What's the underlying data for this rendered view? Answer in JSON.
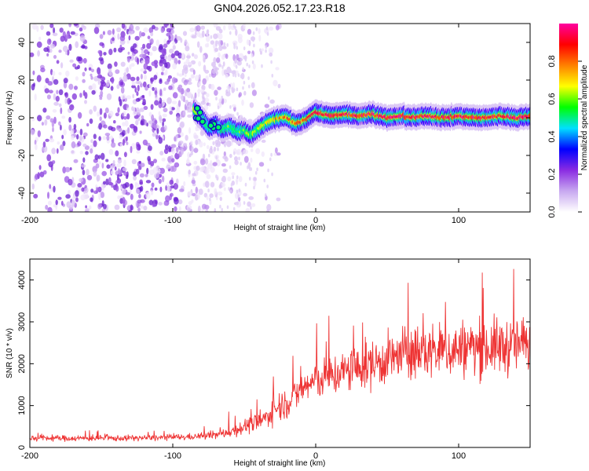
{
  "title": "GN04.2026.052.17.23.R18",
  "chart_data": [
    {
      "type": "heatmap",
      "xlabel": "Height of straight line (km)",
      "ylabel": "Frequency (Hz)",
      "xlim": [
        -200,
        150
      ],
      "ylim": [
        -50,
        50
      ],
      "xticks": [
        -200,
        -100,
        0,
        100
      ],
      "yticks": [
        -40,
        -20,
        0,
        20,
        40
      ],
      "colorbar": {
        "label": "Normalized spectral amplitude",
        "range": [
          0,
          1
        ],
        "ticks": [
          0.0,
          0.2,
          0.4,
          0.6,
          0.8
        ],
        "colors": [
          "#ffffff",
          "#c8a8f0",
          "#8a2be2",
          "#0000ff",
          "#00e0ff",
          "#00ff00",
          "#ffff00",
          "#ff8000",
          "#ff0000",
          "#ff00a0"
        ]
      },
      "ridge": {
        "x": [
          -85,
          -80,
          -75,
          -70,
          -65,
          -60,
          -55,
          -50,
          -45,
          -40,
          -35,
          -30,
          -25,
          -20,
          -15,
          -10,
          -5,
          0,
          10,
          20,
          30,
          40,
          50,
          60,
          70,
          80,
          90,
          100,
          110,
          120,
          130,
          140,
          150
        ],
        "y": [
          4,
          0,
          -5,
          -4,
          -6,
          -5,
          -7,
          -7,
          -9,
          -6,
          -3,
          -1,
          0,
          0,
          -3,
          -2,
          0,
          3,
          1,
          2,
          1,
          2,
          0,
          1,
          0,
          1,
          0,
          1,
          0,
          0,
          1,
          0,
          1
        ],
        "amplitude": [
          0.55,
          0.5,
          0.45,
          0.45,
          0.45,
          0.45,
          0.45,
          0.5,
          0.55,
          0.55,
          0.6,
          0.65,
          0.7,
          0.8,
          0.8,
          0.8,
          0.8,
          0.85,
          0.85,
          0.85,
          0.85,
          0.85,
          0.85,
          0.85,
          0.85,
          0.85,
          0.85,
          0.85,
          0.85,
          0.85,
          0.85,
          0.85,
          0.85
        ]
      },
      "noise_region": {
        "x": [
          -200,
          -35
        ],
        "amplitude": 0.2
      }
    },
    {
      "type": "line",
      "xlabel": "Height of straight line (km)",
      "ylabel": "SNR (10 * v/v)",
      "xlim": [
        -200,
        150
      ],
      "ylim": [
        0,
        4500
      ],
      "xticks": [
        -200,
        -100,
        0,
        100
      ],
      "yticks": [
        0,
        1000,
        2000,
        3000,
        4000
      ],
      "series": [
        {
          "color": "#ee3333",
          "x": [
            -200,
            -180,
            -160,
            -140,
            -120,
            -100,
            -90,
            -80,
            -70,
            -65,
            -60,
            -55,
            -50,
            -45,
            -40,
            -35,
            -30,
            -25,
            -20,
            -15,
            -10,
            -5,
            0,
            10,
            20,
            30,
            40,
            50,
            60,
            70,
            80,
            90,
            100,
            110,
            120,
            130,
            140,
            150
          ],
          "mean": [
            220,
            220,
            220,
            220,
            230,
            240,
            250,
            270,
            300,
            330,
            380,
            430,
            500,
            550,
            600,
            700,
            900,
            1000,
            1100,
            1200,
            1400,
            1500,
            1600,
            1700,
            1800,
            1900,
            2000,
            2100,
            2200,
            2250,
            2300,
            2300,
            2350,
            2400,
            2400,
            2400,
            2450,
            2500
          ],
          "spread": [
            130,
            130,
            130,
            130,
            130,
            130,
            140,
            150,
            180,
            200,
            250,
            300,
            350,
            350,
            400,
            450,
            600,
            650,
            700,
            700,
            800,
            800,
            850,
            900,
            950,
            1000,
            1100,
            1100,
            1200,
            1200,
            1200,
            1200,
            1250,
            1250,
            1250,
            1250,
            1250,
            1250
          ],
          "samples": 1100
        }
      ]
    }
  ]
}
